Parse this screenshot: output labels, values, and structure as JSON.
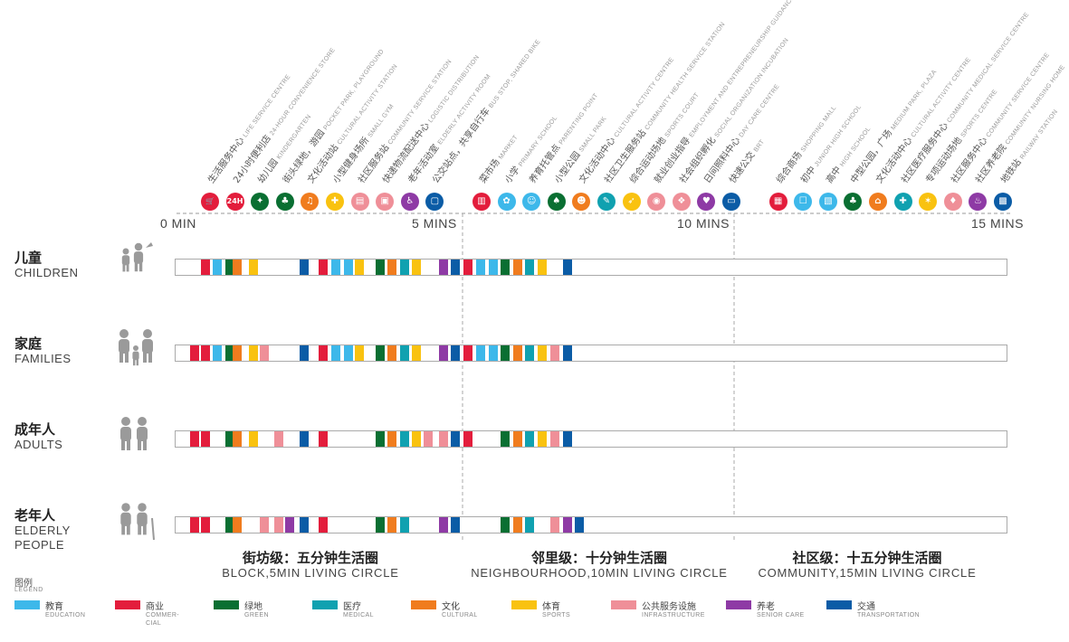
{
  "ticks": [
    "0 MIN",
    "5 MINS",
    "10 MINS",
    "15 MINS"
  ],
  "categories": {
    "education": {
      "zh": "教育",
      "en": "EDUCATION",
      "color": "#3db8ea"
    },
    "commercial": {
      "zh": "商业",
      "en": "COMMER-\nCIAL",
      "color": "#e31d3c"
    },
    "green": {
      "zh": "绿地",
      "en": "GREEN",
      "color": "#0a6f32"
    },
    "medical": {
      "zh": "医疗",
      "en": "MEDICAL",
      "color": "#10a1b0"
    },
    "cultural": {
      "zh": "文化",
      "en": "CULTURAL",
      "color": "#f07c1e"
    },
    "sports": {
      "zh": "体育",
      "en": "SPORTS",
      "color": "#f9c210"
    },
    "infrastructure": {
      "zh": "公共服务设施",
      "en": "INFRASTRUCTURE",
      "color": "#ef8f98"
    },
    "senior_care": {
      "zh": "养老",
      "en": "SENIOR CARE",
      "color": "#8e3aa5"
    },
    "transportation": {
      "zh": "交通",
      "en": "TRANSPORTATION",
      "color": "#0b5ca6"
    }
  },
  "legend": {
    "title_zh": "图例",
    "title_en": "LEGEND",
    "order": [
      "education",
      "commercial",
      "green",
      "medical",
      "cultural",
      "sports",
      "infrastructure",
      "senior_care",
      "transportation"
    ]
  },
  "pois": [
    {
      "zh": "生活服务中心",
      "en": "LIFE SERVICE CENTRE",
      "category": "commercial",
      "icon": "cart-icon",
      "glyph": "🛒"
    },
    {
      "zh": "24小时便利店",
      "en": "24-HOUR CONVENIENCE STORE",
      "category": "commercial",
      "icon": "24h-icon",
      "glyph": "24H"
    },
    {
      "zh": "幼儿园",
      "en": "KINDERGARTEN",
      "category": "green",
      "icon": "child-icon",
      "glyph": "✦"
    },
    {
      "zh": "街头绿地，游园",
      "en": "POCKET PARK, PLAYGROUND",
      "category": "green",
      "icon": "park-icon",
      "glyph": "♣"
    },
    {
      "zh": "文化活动站",
      "en": "CULTURAL ACTIVITY STATION",
      "category": "cultural",
      "icon": "culture-icon",
      "glyph": "♫"
    },
    {
      "zh": "小型健身场所",
      "en": "SMALL GYM",
      "category": "sports",
      "icon": "gym-icon",
      "glyph": "✚"
    },
    {
      "zh": "社区服务站",
      "en": "COMMUNITY SERVICE STATION",
      "category": "infrastructure",
      "icon": "service-icon",
      "glyph": "▤"
    },
    {
      "zh": "快递物流配送中心",
      "en": "LOGISTIC DISTRIBUTION",
      "category": "infrastructure",
      "icon": "truck-icon",
      "glyph": "▣"
    },
    {
      "zh": "老年活动室",
      "en": "ELDERLY ACTIVITY ROOM",
      "category": "senior_care",
      "icon": "elderly-icon",
      "glyph": "♿"
    },
    {
      "zh": "公交站点，共享自行车",
      "en": "BUS STOP, SHARED BIKE",
      "category": "transportation",
      "icon": "bus-icon",
      "glyph": "▢"
    },
    {
      "zh": "菜市场",
      "en": "MARKET",
      "category": "commercial",
      "icon": "market-icon",
      "glyph": "▥"
    },
    {
      "zh": "小学",
      "en": "PRIMARY SCHOOL",
      "category": "education",
      "icon": "school-icon",
      "glyph": "✿"
    },
    {
      "zh": "养育托管点",
      "en": "PARENTING POINT",
      "category": "education",
      "icon": "parenting-icon",
      "glyph": "☺"
    },
    {
      "zh": "小型公园",
      "en": "SMALL PARK",
      "category": "green",
      "icon": "tree-icon",
      "glyph": "♠"
    },
    {
      "zh": "文化活动中心",
      "en": "CULTURAL ACTIVITY CENTRE",
      "category": "cultural",
      "icon": "mask-icon",
      "glyph": "☻"
    },
    {
      "zh": "社区卫生服务站",
      "en": "COMMUNITY HEALTH SERVICE STATION",
      "category": "medical",
      "icon": "medical-icon",
      "glyph": "✎"
    },
    {
      "zh": "综合运动场地",
      "en": "SPORTS COURT",
      "category": "sports",
      "icon": "runner-icon",
      "glyph": "➶"
    },
    {
      "zh": "就业创业指导",
      "en": "EMPLOYMENT AND ENTREPRENEURSHIP GUIDANCE",
      "category": "infrastructure",
      "icon": "employment-icon",
      "glyph": "◉"
    },
    {
      "zh": "社会组织孵化",
      "en": "SOCIAL ORGANIZATION INCUBATION",
      "category": "infrastructure",
      "icon": "incubation-icon",
      "glyph": "❖"
    },
    {
      "zh": "日间照料中心",
      "en": "DAY CARE CENTRE",
      "category": "senior_care",
      "icon": "daycare-icon",
      "glyph": "♥"
    },
    {
      "zh": "快速公交",
      "en": "BRT",
      "category": "transportation",
      "icon": "brt-icon",
      "glyph": "▭"
    },
    {
      "zh": "综合商场",
      "en": "SHOPPING MALL",
      "category": "commercial",
      "icon": "mall-icon",
      "glyph": "▦"
    },
    {
      "zh": "初中",
      "en": "JUNIOR HIGH SCHOOL",
      "category": "education",
      "icon": "book-icon",
      "glyph": "☐"
    },
    {
      "zh": "高中",
      "en": "HIGH SCHOOL",
      "category": "education",
      "icon": "highschool-icon",
      "glyph": "▧"
    },
    {
      "zh": "中型公园，广场",
      "en": "MEDIUM PARK, PLAZA",
      "category": "green",
      "icon": "plaza-icon",
      "glyph": "♣"
    },
    {
      "zh": "文化活动中心",
      "en": "CULTURAL ACTIVITY CENTRE",
      "category": "cultural",
      "icon": "museum-icon",
      "glyph": "⌂"
    },
    {
      "zh": "社区医疗服务中心",
      "en": "COMMUNITY MEDICAL SERVICE CENTRE",
      "category": "medical",
      "icon": "cross-icon",
      "glyph": "✚"
    },
    {
      "zh": "专项运动场地",
      "en": "SPORTS CENTRE",
      "category": "sports",
      "icon": "sports-centre-icon",
      "glyph": "✶"
    },
    {
      "zh": "社区服务中心",
      "en": "COMMUNITY SERVICE CENTRE",
      "category": "infrastructure",
      "icon": "handshake-icon",
      "glyph": "♦"
    },
    {
      "zh": "社区养老院",
      "en": "COMMUNITY NURSING HOME",
      "category": "senior_care",
      "icon": "nursing-icon",
      "glyph": "♨"
    },
    {
      "zh": "地铁站",
      "en": "RAILWAY STATION",
      "category": "transportation",
      "icon": "metro-icon",
      "glyph": "▩"
    }
  ],
  "rows": [
    {
      "zh": "儿童",
      "en": "CHILDREN",
      "icon": "children-icon",
      "blocks": [
        [
          "commercial",
          2.17
        ],
        [
          "education",
          2.99
        ],
        [
          "green",
          3.91
        ],
        [
          "cultural",
          4.46
        ],
        [
          "sports",
          5.58
        ],
        [
          "transportation",
          9.26
        ],
        [
          "commercial",
          10.61
        ],
        [
          "education",
          11.56
        ],
        [
          "education",
          12.44
        ],
        [
          "sports",
          13.23
        ],
        [
          "green",
          14.73
        ],
        [
          "cultural",
          15.59
        ],
        [
          "medical",
          16.53
        ],
        [
          "sports",
          17.32
        ],
        [
          "senior_care",
          19.33
        ],
        [
          "transportation",
          20.17
        ],
        [
          "commercial",
          21.08
        ],
        [
          "education",
          21.99
        ],
        [
          "education",
          22.86
        ],
        [
          "green",
          23.76
        ],
        [
          "cultural",
          24.64
        ],
        [
          "medical",
          25.51
        ],
        [
          "sports",
          26.43
        ],
        [
          "transportation",
          28.22
        ]
      ]
    },
    {
      "zh": "家庭",
      "en": "FAMILIES",
      "icon": "families-icon",
      "blocks": [
        [
          "commercial",
          1.34
        ],
        [
          "commercial",
          2.17
        ],
        [
          "education",
          2.99
        ],
        [
          "green",
          3.91
        ],
        [
          "cultural",
          4.46
        ],
        [
          "sports",
          5.58
        ],
        [
          "infrastructure",
          6.41
        ],
        [
          "transportation",
          9.26
        ],
        [
          "commercial",
          10.61
        ],
        [
          "education",
          11.56
        ],
        [
          "education",
          12.44
        ],
        [
          "sports",
          13.23
        ],
        [
          "green",
          14.73
        ],
        [
          "cultural",
          15.59
        ],
        [
          "medical",
          16.53
        ],
        [
          "sports",
          17.32
        ],
        [
          "senior_care",
          19.33
        ],
        [
          "transportation",
          20.17
        ],
        [
          "commercial",
          21.08
        ],
        [
          "education",
          21.99
        ],
        [
          "education",
          22.86
        ],
        [
          "green",
          23.76
        ],
        [
          "cultural",
          24.64
        ],
        [
          "medical",
          25.51
        ],
        [
          "sports",
          26.43
        ],
        [
          "infrastructure",
          27.33
        ],
        [
          "transportation",
          28.22
        ]
      ]
    },
    {
      "zh": "成年人",
      "en": "ADULTS",
      "icon": "adults-icon",
      "blocks": [
        [
          "commercial",
          1.34
        ],
        [
          "commercial",
          2.17
        ],
        [
          "green",
          3.91
        ],
        [
          "cultural",
          4.46
        ],
        [
          "sports",
          5.58
        ],
        [
          "infrastructure",
          7.44
        ],
        [
          "transportation",
          9.26
        ],
        [
          "commercial",
          10.61
        ],
        [
          "green",
          14.73
        ],
        [
          "cultural",
          15.59
        ],
        [
          "medical",
          16.53
        ],
        [
          "sports",
          17.32
        ],
        [
          "infrastructure",
          18.21
        ],
        [
          "infrastructure",
          19.33
        ],
        [
          "transportation",
          20.17
        ],
        [
          "commercial",
          21.08
        ],
        [
          "green",
          23.76
        ],
        [
          "cultural",
          24.64
        ],
        [
          "medical",
          25.51
        ],
        [
          "sports",
          26.43
        ],
        [
          "infrastructure",
          27.33
        ],
        [
          "transportation",
          28.22
        ]
      ]
    },
    {
      "zh": "老年人",
      "en": "ELDERLY\nPEOPLE",
      "icon": "elderly-people-icon",
      "blocks": [
        [
          "commercial",
          1.34
        ],
        [
          "commercial",
          2.17
        ],
        [
          "green",
          3.91
        ],
        [
          "cultural",
          4.46
        ],
        [
          "infrastructure",
          6.41
        ],
        [
          "infrastructure",
          7.44
        ],
        [
          "senior_care",
          8.24
        ],
        [
          "transportation",
          9.26
        ],
        [
          "commercial",
          10.61
        ],
        [
          "green",
          14.73
        ],
        [
          "cultural",
          15.59
        ],
        [
          "medical",
          16.53
        ],
        [
          "senior_care",
          19.33
        ],
        [
          "transportation",
          20.17
        ],
        [
          "green",
          23.76
        ],
        [
          "cultural",
          24.64
        ],
        [
          "medical",
          25.51
        ],
        [
          "infrastructure",
          27.33
        ],
        [
          "senior_care",
          28.22
        ],
        [
          "transportation",
          29.11
        ]
      ]
    }
  ],
  "circles": [
    {
      "zh": "街坊级：五分钟生活圈",
      "en": "BLOCK,5MIN LIVING CIRCLE"
    },
    {
      "zh": "邻里级：十分钟生活圈",
      "en": "NEIGHBOURHOOD,10MIN LIVING CIRCLE"
    },
    {
      "zh": "社区级：十五分钟生活圈",
      "en": "COMMUNITY,15MIN LIVING CIRCLE"
    }
  ]
}
